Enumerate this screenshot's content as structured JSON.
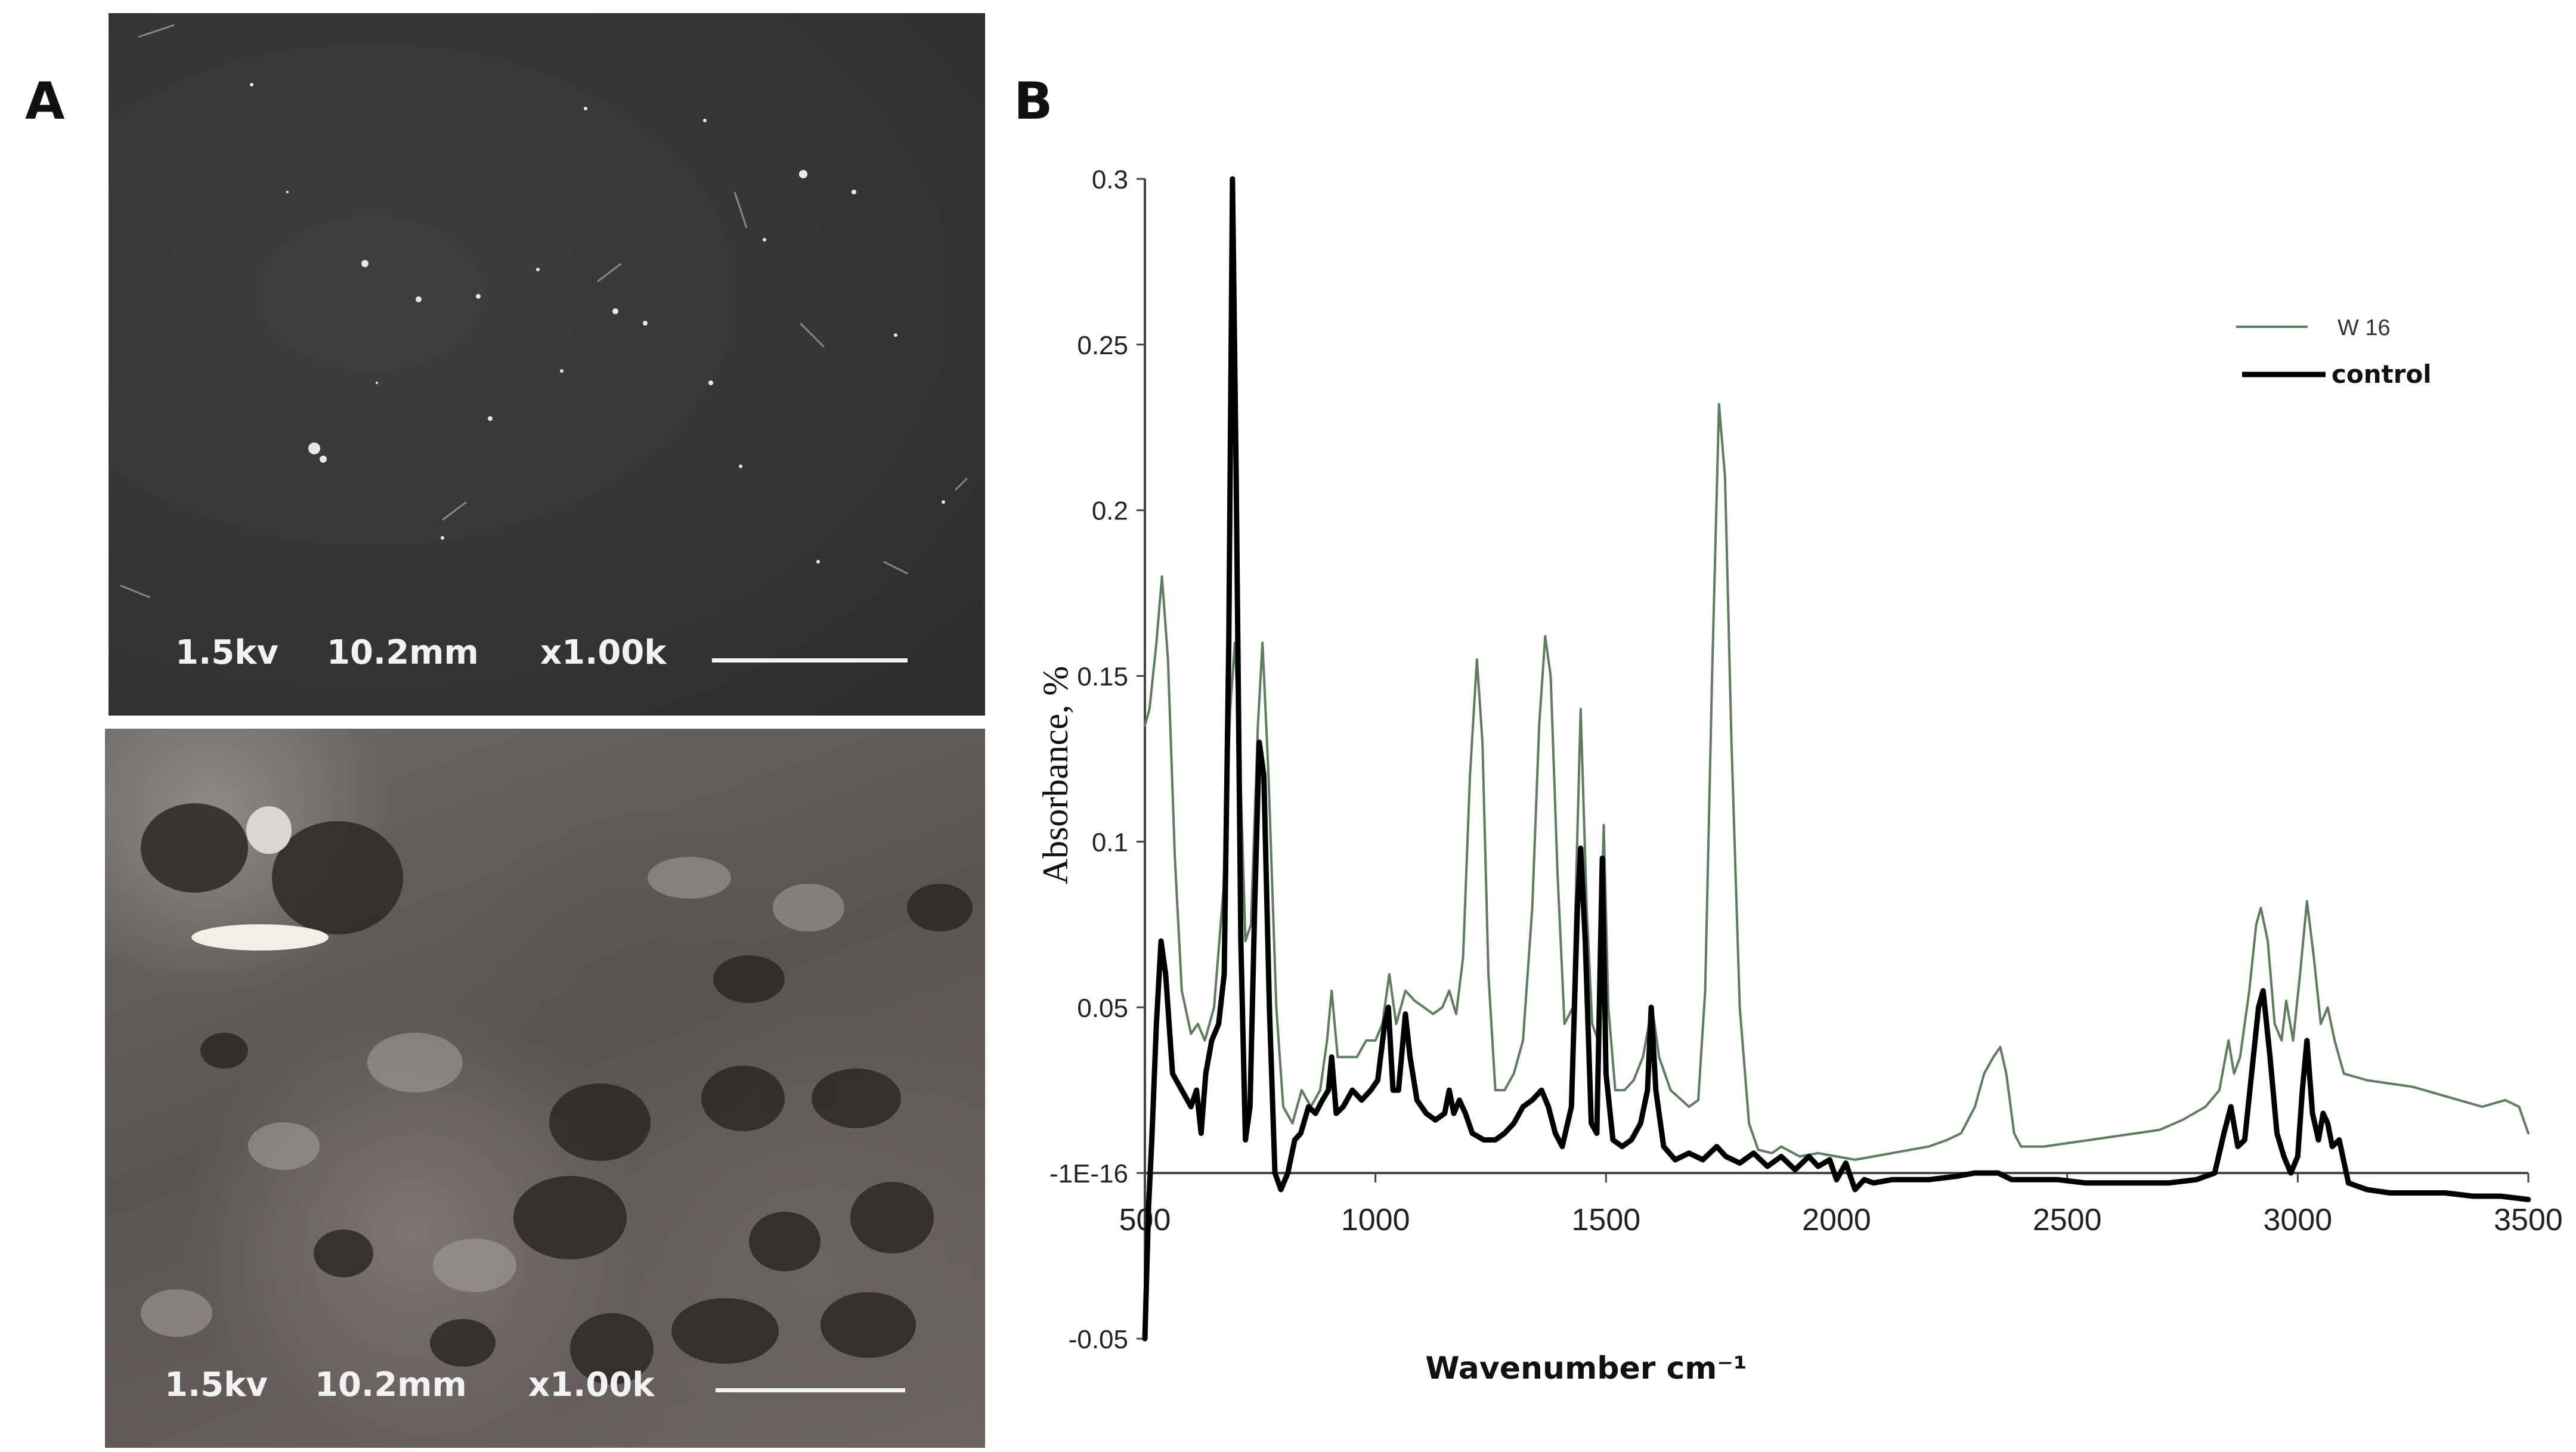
{
  "panels": {
    "a": {
      "letter": "A"
    },
    "b": {
      "letter": "B"
    }
  },
  "sem_images": [
    {
      "voltage": "1.5kv",
      "distance": "10.2mm",
      "magnification": "x1.00k"
    },
    {
      "voltage": "1.5kv",
      "distance": "10.2mm",
      "magnification": "x1.00k"
    }
  ],
  "chart_data": {
    "type": "line",
    "title": "",
    "xlabel": "Wavenumber cm⁻¹",
    "ylabel": "Absorbance, %",
    "xlim": [
      500,
      3500
    ],
    "ylim": [
      -0.05,
      0.3
    ],
    "x_ticks": [
      "500",
      "1000",
      "1500",
      "2000",
      "2500",
      "3000",
      "3500"
    ],
    "y_ticks": [
      "-0.05",
      "-1E-16",
      "0.05",
      "0.1",
      "0.15",
      "0.2",
      "0.25",
      "0.3"
    ],
    "grid": false,
    "legend_position": "top-right",
    "colors": {
      "w16": "#5d7d5d",
      "control": "#000000"
    },
    "series": [
      {
        "name": "W 16",
        "points": [
          [
            500,
            0.135
          ],
          [
            510,
            0.14
          ],
          [
            525,
            0.16
          ],
          [
            537,
            0.18
          ],
          [
            550,
            0.155
          ],
          [
            565,
            0.095
          ],
          [
            580,
            0.055
          ],
          [
            600,
            0.042
          ],
          [
            615,
            0.045
          ],
          [
            630,
            0.04
          ],
          [
            650,
            0.05
          ],
          [
            670,
            0.085
          ],
          [
            685,
            0.14
          ],
          [
            695,
            0.16
          ],
          [
            705,
            0.13
          ],
          [
            718,
            0.07
          ],
          [
            730,
            0.075
          ],
          [
            745,
            0.135
          ],
          [
            755,
            0.16
          ],
          [
            768,
            0.12
          ],
          [
            785,
            0.05
          ],
          [
            800,
            0.02
          ],
          [
            820,
            0.015
          ],
          [
            840,
            0.025
          ],
          [
            860,
            0.02
          ],
          [
            880,
            0.025
          ],
          [
            895,
            0.04
          ],
          [
            905,
            0.055
          ],
          [
            918,
            0.035
          ],
          [
            940,
            0.035
          ],
          [
            960,
            0.035
          ],
          [
            980,
            0.04
          ],
          [
            1000,
            0.04
          ],
          [
            1015,
            0.045
          ],
          [
            1030,
            0.06
          ],
          [
            1045,
            0.045
          ],
          [
            1065,
            0.055
          ],
          [
            1085,
            0.052
          ],
          [
            1105,
            0.05
          ],
          [
            1125,
            0.048
          ],
          [
            1145,
            0.05
          ],
          [
            1160,
            0.055
          ],
          [
            1175,
            0.048
          ],
          [
            1190,
            0.065
          ],
          [
            1205,
            0.12
          ],
          [
            1220,
            0.155
          ],
          [
            1232,
            0.13
          ],
          [
            1245,
            0.06
          ],
          [
            1260,
            0.025
          ],
          [
            1280,
            0.025
          ],
          [
            1300,
            0.03
          ],
          [
            1320,
            0.04
          ],
          [
            1340,
            0.08
          ],
          [
            1355,
            0.135
          ],
          [
            1368,
            0.162
          ],
          [
            1380,
            0.15
          ],
          [
            1395,
            0.09
          ],
          [
            1410,
            0.045
          ],
          [
            1428,
            0.05
          ],
          [
            1445,
            0.14
          ],
          [
            1458,
            0.08
          ],
          [
            1470,
            0.045
          ],
          [
            1483,
            0.04
          ],
          [
            1495,
            0.105
          ],
          [
            1505,
            0.05
          ],
          [
            1520,
            0.025
          ],
          [
            1540,
            0.025
          ],
          [
            1560,
            0.028
          ],
          [
            1580,
            0.035
          ],
          [
            1600,
            0.05
          ],
          [
            1615,
            0.035
          ],
          [
            1640,
            0.025
          ],
          [
            1680,
            0.02
          ],
          [
            1700,
            0.022
          ],
          [
            1715,
            0.055
          ],
          [
            1730,
            0.15
          ],
          [
            1745,
            0.232
          ],
          [
            1758,
            0.21
          ],
          [
            1772,
            0.13
          ],
          [
            1790,
            0.05
          ],
          [
            1810,
            0.015
          ],
          [
            1830,
            0.007
          ],
          [
            1860,
            0.006
          ],
          [
            1880,
            0.008
          ],
          [
            1920,
            0.005
          ],
          [
            1960,
            0.006
          ],
          [
            2000,
            0.005
          ],
          [
            2040,
            0.004
          ],
          [
            2080,
            0.005
          ],
          [
            2120,
            0.006
          ],
          [
            2160,
            0.007
          ],
          [
            2200,
            0.008
          ],
          [
            2240,
            0.01
          ],
          [
            2270,
            0.012
          ],
          [
            2300,
            0.02
          ],
          [
            2320,
            0.03
          ],
          [
            2340,
            0.035
          ],
          [
            2355,
            0.038
          ],
          [
            2368,
            0.03
          ],
          [
            2385,
            0.012
          ],
          [
            2400,
            0.008
          ],
          [
            2450,
            0.008
          ],
          [
            2500,
            0.009
          ],
          [
            2550,
            0.01
          ],
          [
            2600,
            0.011
          ],
          [
            2650,
            0.012
          ],
          [
            2700,
            0.013
          ],
          [
            2750,
            0.016
          ],
          [
            2800,
            0.02
          ],
          [
            2830,
            0.025
          ],
          [
            2850,
            0.04
          ],
          [
            2862,
            0.03
          ],
          [
            2875,
            0.035
          ],
          [
            2895,
            0.055
          ],
          [
            2910,
            0.075
          ],
          [
            2920,
            0.08
          ],
          [
            2935,
            0.07
          ],
          [
            2950,
            0.045
          ],
          [
            2965,
            0.04
          ],
          [
            2975,
            0.052
          ],
          [
            2990,
            0.04
          ],
          [
            3005,
            0.06
          ],
          [
            3020,
            0.082
          ],
          [
            3035,
            0.065
          ],
          [
            3050,
            0.045
          ],
          [
            3065,
            0.05
          ],
          [
            3080,
            0.04
          ],
          [
            3100,
            0.03
          ],
          [
            3150,
            0.028
          ],
          [
            3200,
            0.027
          ],
          [
            3250,
            0.026
          ],
          [
            3300,
            0.024
          ],
          [
            3350,
            0.022
          ],
          [
            3400,
            0.02
          ],
          [
            3450,
            0.022
          ],
          [
            3480,
            0.02
          ],
          [
            3500,
            0.012
          ]
        ]
      },
      {
        "name": "control",
        "points": [
          [
            500,
            -0.05
          ],
          [
            508,
            -0.01
          ],
          [
            515,
            0.01
          ],
          [
            525,
            0.045
          ],
          [
            535,
            0.07
          ],
          [
            545,
            0.06
          ],
          [
            560,
            0.03
          ],
          [
            580,
            0.025
          ],
          [
            600,
            0.02
          ],
          [
            612,
            0.025
          ],
          [
            622,
            0.012
          ],
          [
            632,
            0.03
          ],
          [
            645,
            0.04
          ],
          [
            660,
            0.045
          ],
          [
            672,
            0.06
          ],
          [
            682,
            0.16
          ],
          [
            690,
            0.3
          ],
          [
            698,
            0.21
          ],
          [
            708,
            0.07
          ],
          [
            718,
            0.01
          ],
          [
            728,
            0.02
          ],
          [
            738,
            0.08
          ],
          [
            748,
            0.13
          ],
          [
            758,
            0.12
          ],
          [
            770,
            0.05
          ],
          [
            782,
            0.0
          ],
          [
            795,
            -0.005
          ],
          [
            810,
            0.0
          ],
          [
            825,
            0.01
          ],
          [
            838,
            0.012
          ],
          [
            855,
            0.02
          ],
          [
            870,
            0.018
          ],
          [
            885,
            0.022
          ],
          [
            898,
            0.025
          ],
          [
            905,
            0.035
          ],
          [
            915,
            0.018
          ],
          [
            930,
            0.02
          ],
          [
            950,
            0.025
          ],
          [
            970,
            0.022
          ],
          [
            990,
            0.025
          ],
          [
            1005,
            0.028
          ],
          [
            1020,
            0.045
          ],
          [
            1028,
            0.05
          ],
          [
            1038,
            0.025
          ],
          [
            1050,
            0.025
          ],
          [
            1065,
            0.048
          ],
          [
            1075,
            0.035
          ],
          [
            1090,
            0.022
          ],
          [
            1110,
            0.018
          ],
          [
            1130,
            0.016
          ],
          [
            1150,
            0.018
          ],
          [
            1160,
            0.025
          ],
          [
            1170,
            0.018
          ],
          [
            1182,
            0.022
          ],
          [
            1195,
            0.018
          ],
          [
            1210,
            0.012
          ],
          [
            1235,
            0.01
          ],
          [
            1260,
            0.01
          ],
          [
            1280,
            0.012
          ],
          [
            1300,
            0.015
          ],
          [
            1320,
            0.02
          ],
          [
            1340,
            0.022
          ],
          [
            1360,
            0.025
          ],
          [
            1375,
            0.02
          ],
          [
            1390,
            0.012
          ],
          [
            1405,
            0.008
          ],
          [
            1425,
            0.02
          ],
          [
            1438,
            0.08
          ],
          [
            1445,
            0.098
          ],
          [
            1455,
            0.07
          ],
          [
            1468,
            0.015
          ],
          [
            1480,
            0.012
          ],
          [
            1492,
            0.095
          ],
          [
            1500,
            0.03
          ],
          [
            1515,
            0.01
          ],
          [
            1535,
            0.008
          ],
          [
            1555,
            0.01
          ],
          [
            1575,
            0.015
          ],
          [
            1590,
            0.025
          ],
          [
            1598,
            0.05
          ],
          [
            1608,
            0.025
          ],
          [
            1625,
            0.008
          ],
          [
            1650,
            0.004
          ],
          [
            1680,
            0.006
          ],
          [
            1710,
            0.004
          ],
          [
            1740,
            0.008
          ],
          [
            1760,
            0.005
          ],
          [
            1790,
            0.003
          ],
          [
            1820,
            0.006
          ],
          [
            1850,
            0.002
          ],
          [
            1880,
            0.005
          ],
          [
            1910,
            0.001
          ],
          [
            1940,
            0.005
          ],
          [
            1960,
            0.002
          ],
          [
            1985,
            0.004
          ],
          [
            2000,
            -0.002
          ],
          [
            2020,
            0.003
          ],
          [
            2040,
            -0.005
          ],
          [
            2060,
            -0.002
          ],
          [
            2080,
            -0.003
          ],
          [
            2120,
            -0.002
          ],
          [
            2160,
            -0.002
          ],
          [
            2200,
            -0.002
          ],
          [
            2260,
            -0.001
          ],
          [
            2300,
            0.0
          ],
          [
            2330,
            0.0
          ],
          [
            2350,
            0.0
          ],
          [
            2380,
            -0.002
          ],
          [
            2420,
            -0.002
          ],
          [
            2480,
            -0.002
          ],
          [
            2540,
            -0.003
          ],
          [
            2600,
            -0.003
          ],
          [
            2660,
            -0.003
          ],
          [
            2720,
            -0.003
          ],
          [
            2780,
            -0.002
          ],
          [
            2820,
            0.0
          ],
          [
            2840,
            0.012
          ],
          [
            2855,
            0.02
          ],
          [
            2870,
            0.008
          ],
          [
            2885,
            0.01
          ],
          [
            2900,
            0.03
          ],
          [
            2915,
            0.05
          ],
          [
            2925,
            0.055
          ],
          [
            2940,
            0.035
          ],
          [
            2955,
            0.012
          ],
          [
            2970,
            0.005
          ],
          [
            2985,
            0.0
          ],
          [
            3000,
            0.005
          ],
          [
            3010,
            0.025
          ],
          [
            3020,
            0.04
          ],
          [
            3032,
            0.018
          ],
          [
            3045,
            0.01
          ],
          [
            3055,
            0.018
          ],
          [
            3065,
            0.015
          ],
          [
            3075,
            0.008
          ],
          [
            3090,
            0.01
          ],
          [
            3110,
            -0.003
          ],
          [
            3150,
            -0.005
          ],
          [
            3200,
            -0.006
          ],
          [
            3260,
            -0.006
          ],
          [
            3320,
            -0.006
          ],
          [
            3380,
            -0.007
          ],
          [
            3440,
            -0.007
          ],
          [
            3500,
            -0.008
          ]
        ]
      }
    ]
  }
}
